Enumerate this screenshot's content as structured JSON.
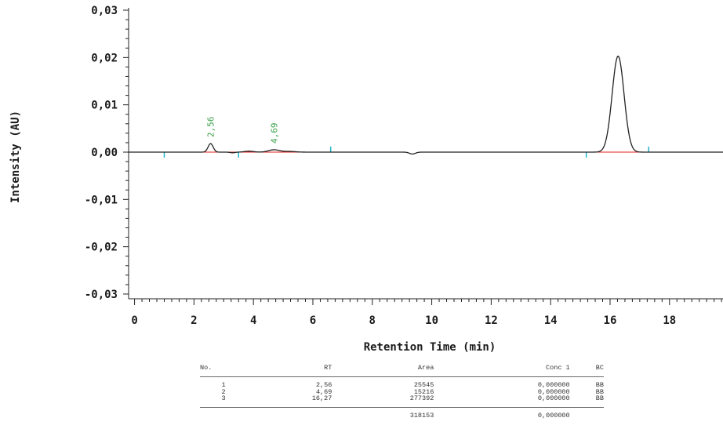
{
  "chart_data": {
    "type": "line",
    "xlabel": "Retention Time (min)",
    "ylabel": "Intensity (AU)",
    "xlim": [
      -0.2,
      19.8
    ],
    "ylim": [
      -0.031,
      0.0305
    ],
    "x_ticks": [
      "0",
      "2",
      "4",
      "6",
      "8",
      "10",
      "12",
      "14",
      "16",
      "18"
    ],
    "y_ticks": [
      "0,03",
      "0,02",
      "0,01",
      "0,00",
      "-0,01",
      "-0,02",
      "-0,03"
    ],
    "peak_labels": [
      "2,56",
      "4,69"
    ],
    "peaks": [
      {
        "rt": 2.56,
        "height": 0.0018
      },
      {
        "rt": 4.69,
        "height": 0.0005
      },
      {
        "rt": 16.27,
        "height": 0.0203
      }
    ],
    "baseline_segments": [
      [
        1.0,
        3.5
      ],
      [
        3.5,
        6.6
      ],
      [
        15.2,
        17.3
      ]
    ],
    "integration_markers": [
      1.0,
      3.5,
      6.6,
      15.2,
      17.3
    ],
    "colors": {
      "trace": "#222222",
      "baseline": "#e02020",
      "marker": "#1fb5c8",
      "label": "#3aa04a"
    }
  },
  "results_table": {
    "headers": [
      "No.",
      "RT",
      "Area",
      "Conc 1",
      "BC"
    ],
    "rows": [
      [
        "1",
        "2,56",
        "25545",
        "0,000000",
        "BB"
      ],
      [
        "2",
        "4,69",
        "15216",
        "0,000000",
        "BB"
      ],
      [
        "3",
        "16,27",
        "277392",
        "0,000000",
        "BB"
      ]
    ],
    "total_area": "318153",
    "total_conc": "0,000000"
  }
}
